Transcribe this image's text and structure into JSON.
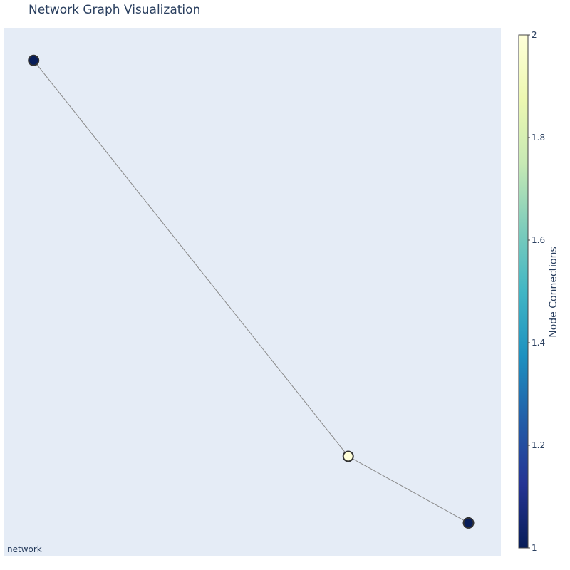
{
  "chart_data": {
    "type": "scatter",
    "title": "Network Graph Visualization",
    "xlabel": "",
    "ylabel": "",
    "grid": false,
    "axes_visible": false,
    "annotation": "network",
    "edges": [
      {
        "from": 0,
        "to": 1
      },
      {
        "from": 1,
        "to": 2
      }
    ],
    "nodes": [
      {
        "x": 0.0,
        "y": 1.0,
        "connections": 1
      },
      {
        "x": 0.68,
        "y": 0.144,
        "connections": 2
      },
      {
        "x": 0.94,
        "y": 0.0,
        "connections": 1
      }
    ],
    "xlim": [
      -0.065,
      1.01
    ],
    "ylim": [
      -0.071,
      1.069
    ],
    "colorbar": {
      "title": "Node Connections",
      "range": [
        1,
        2
      ],
      "ticks": [
        "1",
        "1.2",
        "1.4",
        "1.6",
        "1.8",
        "2"
      ],
      "colorscale": "YlGnBu",
      "colors": [
        "#081d58",
        "#253494",
        "#225ea8",
        "#1d91c0",
        "#41b6c4",
        "#7fcdbb",
        "#c7e9b4",
        "#edf8b1",
        "#ffffd9"
      ]
    },
    "colors": {
      "plot_background": "#e5ecf6",
      "edge": "#888888",
      "node_outline": "#333333",
      "text": "#2a3f5f"
    }
  }
}
